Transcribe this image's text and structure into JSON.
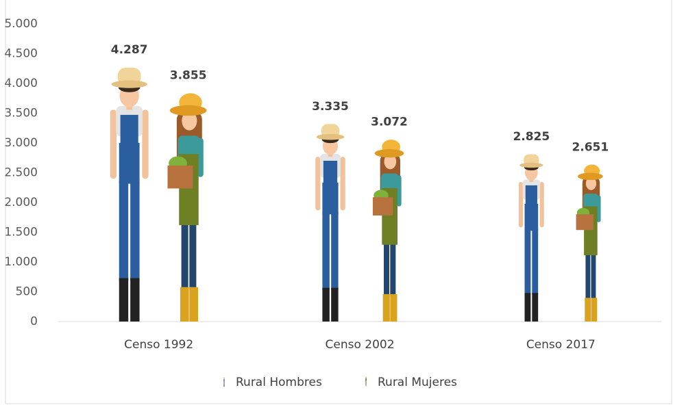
{
  "chart_data": {
    "type": "pictograph",
    "categories": [
      "Censo 1992",
      "Censo 2002",
      "Censo 2017"
    ],
    "series": [
      {
        "name": "Rural Hombres",
        "color": "#2b5e9e",
        "values": [
          4287,
          3335,
          2825
        ],
        "value_labels": [
          "4.287",
          "3.335",
          "2.825"
        ]
      },
      {
        "name": "Rural Mujeres",
        "color": "#e09a22",
        "values": [
          3855,
          3072,
          2651
        ],
        "value_labels": [
          "3.855",
          "3.072",
          "2.651"
        ]
      }
    ],
    "ylim": [
      0,
      5000
    ],
    "yticks": [
      0,
      500,
      {
        "value": 1000,
        "label": "1.000"
      },
      {
        "value": 1500,
        "label": "1.500"
      },
      {
        "value": 2000,
        "label": "2.000"
      },
      {
        "value": 2500,
        "label": "2.500"
      },
      {
        "value": 3000,
        "label": "3.000"
      },
      {
        "value": 3500,
        "label": "3.500"
      },
      {
        "value": 4000,
        "label": "4.000"
      },
      {
        "value": 4500,
        "label": "4.500"
      },
      {
        "value": 5000,
        "label": "5.000"
      }
    ],
    "grid": false,
    "legend": "bottom"
  }
}
